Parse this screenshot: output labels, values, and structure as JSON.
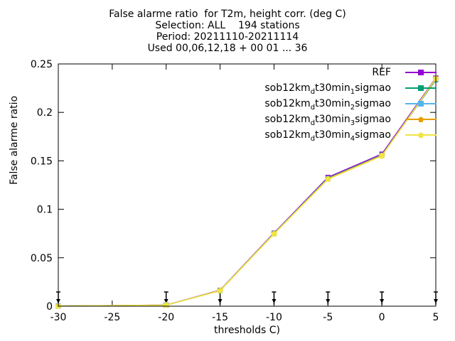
{
  "title": {
    "line1": "False alarme ratio  for T2m, height corr. (deg C)",
    "line2": "Selection: ALL    194 stations",
    "line3": "Period: 20211110-20211114",
    "line4": "Used 00,06,12,18 + 00 01 ... 36"
  },
  "chart_data": {
    "type": "line",
    "xlabel": "thresholds C)",
    "ylabel": "False alarme ratio",
    "xlim": [
      -30,
      5
    ],
    "ylim": [
      0,
      0.25
    ],
    "xticks": [
      -30,
      -25,
      -20,
      -15,
      -10,
      -5,
      0,
      5
    ],
    "yticks": [
      0,
      0.05,
      0.1,
      0.15,
      0.2,
      0.25
    ],
    "ytick_labels": [
      "0",
      "0.05",
      "0.1",
      "0.15",
      "0.2",
      "0.25"
    ],
    "grid": false,
    "legend_position": "top-right",
    "x": [
      -30,
      -20,
      -15,
      -10,
      -5,
      0,
      5
    ],
    "series": [
      {
        "name": "REF",
        "color": "#9400d3",
        "marker": "square",
        "values": [
          0.0002,
          0.0012,
          0.0165,
          0.0755,
          0.133,
          0.157,
          0.2355
        ]
      },
      {
        "name": "sob12km_d t30min_1 sigmao",
        "color": "#009e73",
        "marker": "square",
        "values": [
          0.0002,
          0.0011,
          0.0162,
          0.075,
          0.132,
          0.156,
          0.2335
        ]
      },
      {
        "name": "sob12km_d t30min_2 sigmao",
        "color": "#56b4e9",
        "marker": "square",
        "values": [
          0.0002,
          0.0011,
          0.0162,
          0.075,
          0.1318,
          0.1558,
          0.234
        ]
      },
      {
        "name": "sob12km_d t30min_3 sigmao",
        "color": "#e69f00",
        "marker": "pentagon",
        "values": [
          0.0002,
          0.0011,
          0.0162,
          0.0748,
          0.1315,
          0.1555,
          0.2345
        ]
      },
      {
        "name": "sob12km_d t30min_4 sigmao",
        "color": "#f0e442",
        "marker": "pentagon",
        "values": [
          0.0002,
          0.0011,
          0.016,
          0.0745,
          0.131,
          0.155,
          0.235
        ]
      }
    ],
    "legend": [
      {
        "base": "REF",
        "sub1": "",
        "mid": "",
        "sub2": "",
        "tail": ""
      },
      {
        "base": "sob12km",
        "sub1": "d",
        "mid": "t30min",
        "sub2": "1",
        "tail": "sigmao"
      },
      {
        "base": "sob12km",
        "sub1": "d",
        "mid": "t30min",
        "sub2": "2",
        "tail": "sigmao"
      },
      {
        "base": "sob12km",
        "sub1": "d",
        "mid": "t30min",
        "sub2": "3",
        "tail": "sigmao"
      },
      {
        "base": "sob12km",
        "sub1": "d",
        "mid": "t30min",
        "sub2": "4",
        "tail": "sigmao"
      }
    ]
  }
}
